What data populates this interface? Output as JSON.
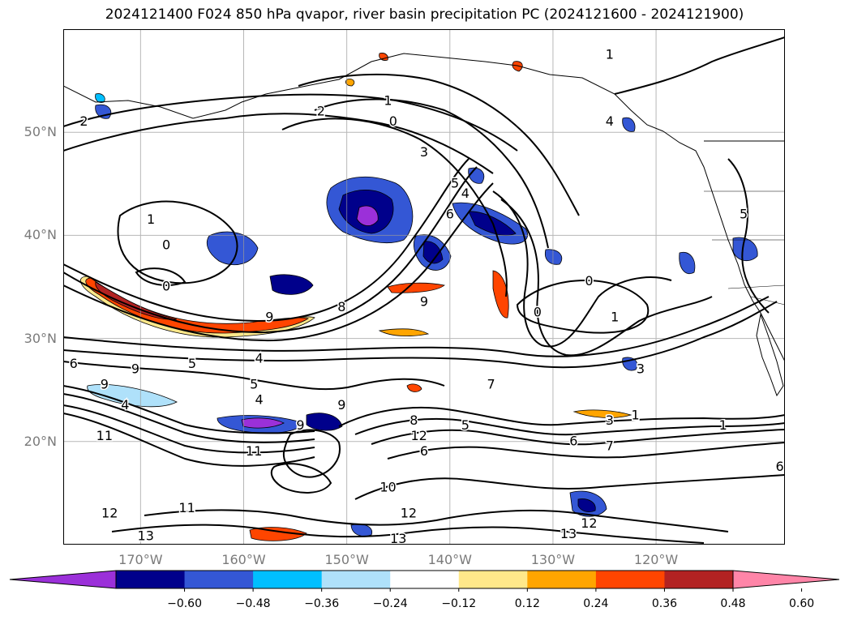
{
  "title": "2024121400 F024 850 hPa qvapor, river basin precipitation PC (2024121600 - 2024121900)",
  "lat_labels": [
    {
      "text": "50°N",
      "lat": 50
    },
    {
      "text": "40°N",
      "lat": 40
    },
    {
      "text": "30°N",
      "lat": 30
    },
    {
      "text": "20°N",
      "lat": 20
    }
  ],
  "lon_labels": [
    {
      "text": "170°W",
      "lon": -170
    },
    {
      "text": "160°W",
      "lon": -160
    },
    {
      "text": "150°W",
      "lon": -150
    },
    {
      "text": "140°W",
      "lon": -140
    },
    {
      "text": "130°W",
      "lon": -130
    },
    {
      "text": "120°W",
      "lon": -120
    }
  ],
  "extent": {
    "lon_min": -177.5,
    "lon_max": -107.5,
    "lat_min": 10,
    "lat_max": 60
  },
  "colorbar": {
    "colors": [
      "#9b30d9",
      "#00008b",
      "#3457d5",
      "#00bfff",
      "#afe1fa",
      "#ffffff",
      "#ffe88a",
      "#ffa500",
      "#ff4500",
      "#b22222",
      "#ff85a8"
    ],
    "ticks": [
      "−0.60",
      "−0.48",
      "−0.36",
      "−0.24",
      "−0.12",
      "0.12",
      "0.24",
      "0.36",
      "0.48",
      "0.60"
    ]
  },
  "contour_labels": [
    {
      "text": "2",
      "lon": -175.5,
      "lat": 51
    },
    {
      "text": "1",
      "lon": -169,
      "lat": 41.5
    },
    {
      "text": "0",
      "lon": -167.5,
      "lat": 39
    },
    {
      "text": "0",
      "lon": -167.5,
      "lat": 35
    },
    {
      "text": "2",
      "lon": -152.5,
      "lat": 52
    },
    {
      "text": "1",
      "lon": -146,
      "lat": 53
    },
    {
      "text": "0",
      "lon": -145.5,
      "lat": 51
    },
    {
      "text": "3",
      "lon": -142.5,
      "lat": 48
    },
    {
      "text": "5",
      "lon": -139.5,
      "lat": 45
    },
    {
      "text": "4",
      "lon": -138.5,
      "lat": 44
    },
    {
      "text": "6",
      "lon": -140,
      "lat": 42
    },
    {
      "text": "9",
      "lon": -157.5,
      "lat": 32
    },
    {
      "text": "8",
      "lon": -150.5,
      "lat": 33
    },
    {
      "text": "9",
      "lon": -142.5,
      "lat": 33.5
    },
    {
      "text": "0",
      "lon": -126.5,
      "lat": 35.5
    },
    {
      "text": "0",
      "lon": -131.5,
      "lat": 32.5
    },
    {
      "text": "1",
      "lon": -124,
      "lat": 32
    },
    {
      "text": "3",
      "lon": -121.5,
      "lat": 27
    },
    {
      "text": "5",
      "lon": -165,
      "lat": 27.5
    },
    {
      "text": "4",
      "lon": -158.5,
      "lat": 28
    },
    {
      "text": "5",
      "lon": -159,
      "lat": 25.5
    },
    {
      "text": "4",
      "lon": -158.5,
      "lat": 24
    },
    {
      "text": "4",
      "lon": -171.5,
      "lat": 23.5
    },
    {
      "text": "9",
      "lon": -173.5,
      "lat": 25.5
    },
    {
      "text": "6",
      "lon": -176.5,
      "lat": 27.5
    },
    {
      "text": "9",
      "lon": -170.5,
      "lat": 27
    },
    {
      "text": "9",
      "lon": -154.5,
      "lat": 21.5
    },
    {
      "text": "9",
      "lon": -150.5,
      "lat": 23.5
    },
    {
      "text": "11",
      "lon": -159,
      "lat": 19
    },
    {
      "text": "11",
      "lon": -173.5,
      "lat": 20.5
    },
    {
      "text": "10",
      "lon": -146,
      "lat": 15.5
    },
    {
      "text": "12",
      "lon": -143,
      "lat": 20.5
    },
    {
      "text": "8",
      "lon": -143.5,
      "lat": 22
    },
    {
      "text": "5",
      "lon": -138.5,
      "lat": 21.5
    },
    {
      "text": "7",
      "lon": -136,
      "lat": 25.5
    },
    {
      "text": "6",
      "lon": -142.5,
      "lat": 19
    },
    {
      "text": "6",
      "lon": -128,
      "lat": 20
    },
    {
      "text": "7",
      "lon": -124.5,
      "lat": 19.5
    },
    {
      "text": "3",
      "lon": -124.5,
      "lat": 22
    },
    {
      "text": "1",
      "lon": -122,
      "lat": 22.5
    },
    {
      "text": "1",
      "lon": -113.5,
      "lat": 21.5
    },
    {
      "text": "12",
      "lon": -173,
      "lat": 13
    },
    {
      "text": "11",
      "lon": -165.5,
      "lat": 13.5
    },
    {
      "text": "13",
      "lon": -169.5,
      "lat": 10.8
    },
    {
      "text": "12",
      "lon": -144,
      "lat": 13
    },
    {
      "text": "13",
      "lon": -145,
      "lat": 10.5
    },
    {
      "text": "12",
      "lon": -126.5,
      "lat": 12
    },
    {
      "text": "13",
      "lon": -128.5,
      "lat": 11
    },
    {
      "text": "1",
      "lon": -124.5,
      "lat": 57.5
    },
    {
      "text": "4",
      "lon": -124.5,
      "lat": 51
    },
    {
      "text": "5",
      "lon": -111.5,
      "lat": 42
    },
    {
      "text": "6",
      "lon": -108,
      "lat": 17.5
    }
  ]
}
